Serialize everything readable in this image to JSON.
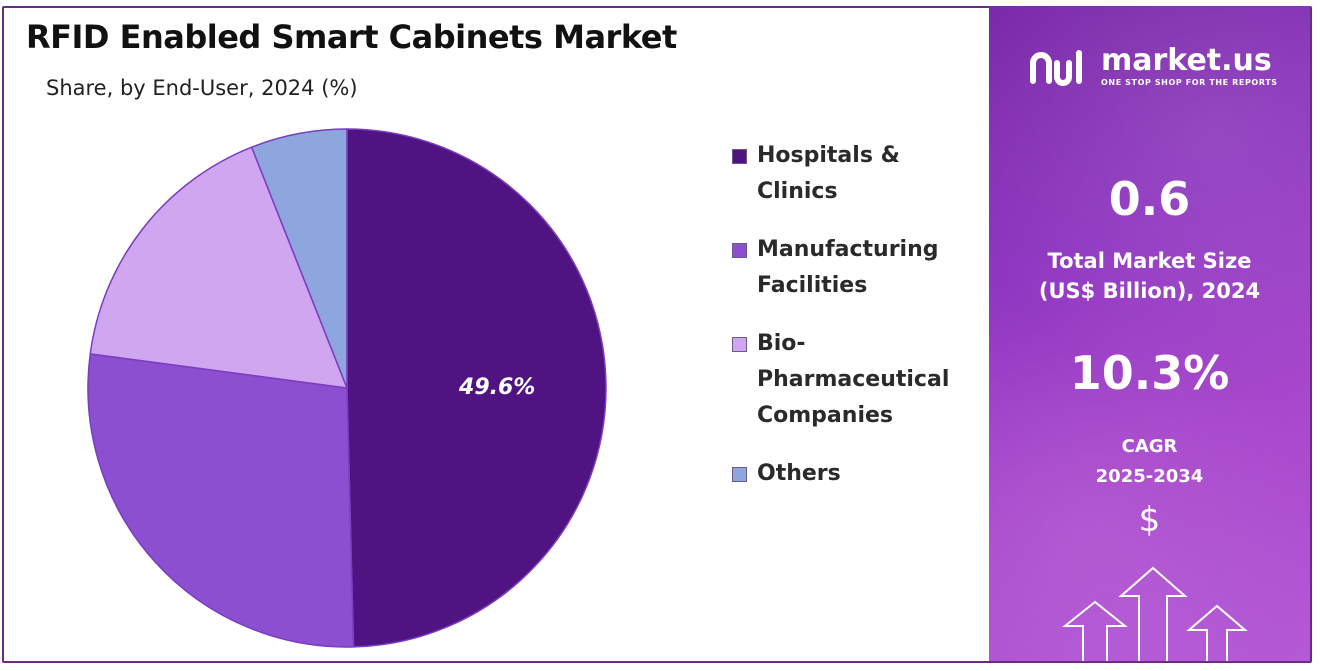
{
  "title": "RFID Enabled Smart Cabinets Market",
  "subtitle": "Share, by End-User, 2024 (%)",
  "chart_data": {
    "type": "pie",
    "categories": [
      "Hospitals & Clinics",
      "Manufacturing Facilities",
      "Bio-Pharmaceutical Companies",
      "Others"
    ],
    "values": [
      49.6,
      27.5,
      16.9,
      6.0
    ],
    "colors": [
      "#4f1482",
      "#8b4fd0",
      "#d1a6f0",
      "#8ea6de"
    ],
    "data_labels": [
      "49.6%",
      "",
      "",
      ""
    ],
    "legend_position": "right"
  },
  "legend": [
    {
      "label": "Hospitals & Clinics",
      "color": "#4f1482"
    },
    {
      "label": "Manufacturing Facilities",
      "color": "#8b4fd0"
    },
    {
      "label": "Bio-Pharmaceutical Companies",
      "color": "#d1a6f0"
    },
    {
      "label": "Others",
      "color": "#8ea6de"
    }
  ],
  "panel": {
    "brand": "market.us",
    "tagline": "ONE STOP SHOP FOR THE REPORTS",
    "market_size_value": "0.6",
    "market_size_label_line1": "Total Market Size",
    "market_size_label_line2": "(US$ Billion), 2024",
    "cagr_value": "10.3%",
    "cagr_label_line1": "CAGR",
    "cagr_label_line2": "2025-2034",
    "currency_symbol": "$",
    "logo_icon": "market-us-logo-icon",
    "arrow_icon": "up-arrow-icon"
  }
}
